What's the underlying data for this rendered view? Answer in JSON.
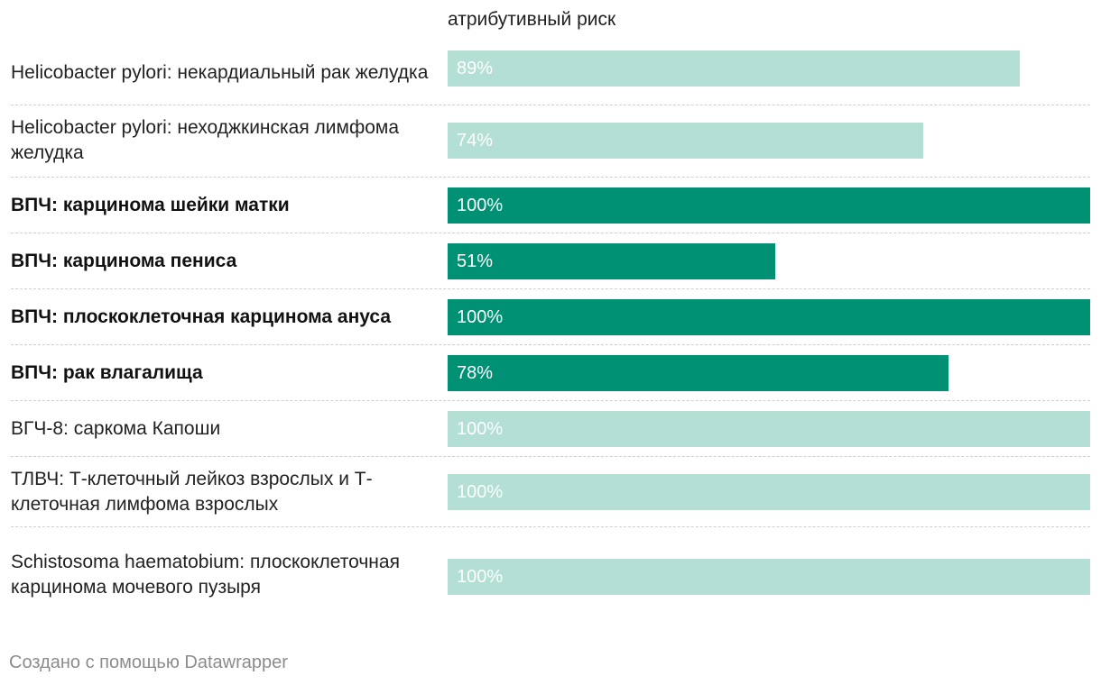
{
  "chart_data": {
    "type": "bar",
    "orientation": "horizontal",
    "column_header": "атрибутивный риск",
    "xlim": [
      0,
      100
    ],
    "unit": "%",
    "colors": {
      "highlight": "#009174",
      "normal": "#b3dfd5",
      "divider": "#cfcfcf"
    },
    "rows": [
      {
        "label": "Helicobacter pylori: некардиальный рак желудка",
        "value": 89,
        "value_label": "89%",
        "highlight": false
      },
      {
        "label": "Helicobacter pylori: неходжкинская лимфома желудка",
        "value": 74,
        "value_label": "74%",
        "highlight": false
      },
      {
        "label": "ВПЧ: карцинома шейки матки",
        "value": 100,
        "value_label": "100%",
        "highlight": true
      },
      {
        "label": "ВПЧ: карцинома пениса",
        "value": 51,
        "value_label": "51%",
        "highlight": true
      },
      {
        "label": "ВПЧ: плоскоклеточная карцинома ануса",
        "value": 100,
        "value_label": "100%",
        "highlight": true
      },
      {
        "label": "ВПЧ: рак влагалища",
        "value": 78,
        "value_label": "78%",
        "highlight": true
      },
      {
        "label": "ВГЧ-8: саркома Капоши",
        "value": 100,
        "value_label": "100%",
        "highlight": false
      },
      {
        "label": "ТЛВЧ: Т-клеточный лейкоз взрослых и Т-клеточная лимфома взрослых",
        "value": 100,
        "value_label": "100%",
        "highlight": false
      },
      {
        "label": "Schistosoma haematobium: плоскоклеточная карцинома мочевого пузыря",
        "value": 100,
        "value_label": "100%",
        "highlight": false
      }
    ]
  },
  "footer": {
    "credit": "Создано с помощью Datawrapper"
  }
}
